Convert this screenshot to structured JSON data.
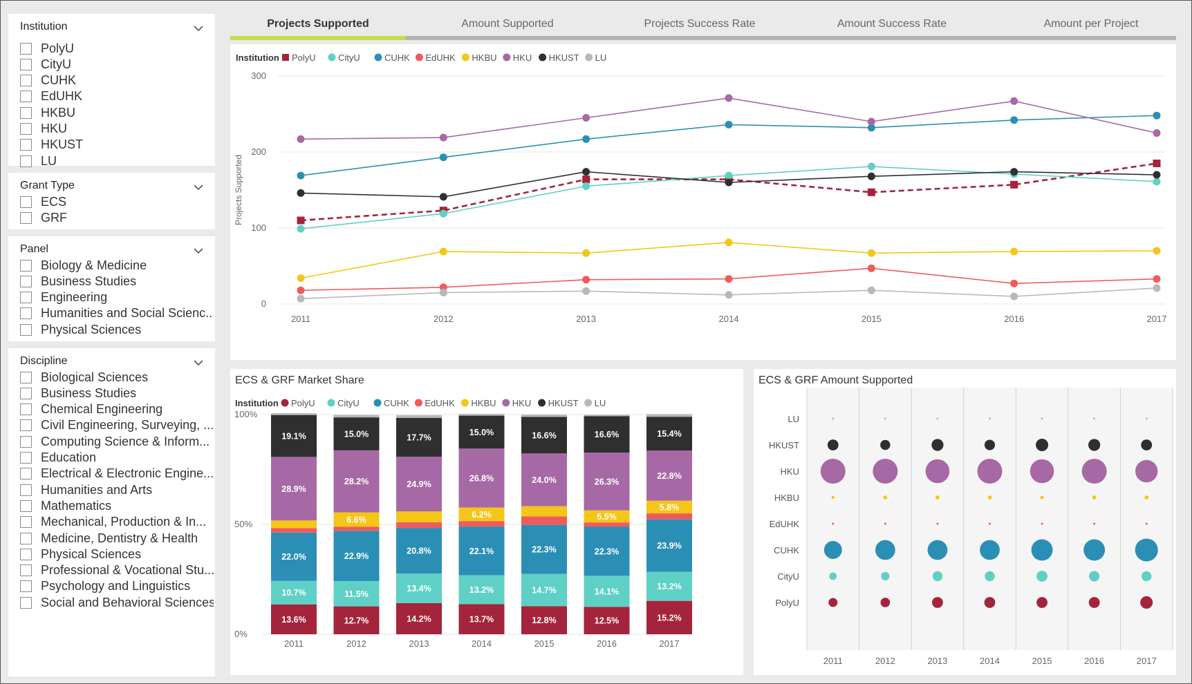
{
  "slicers": {
    "institution": {
      "title": "Institution",
      "items": [
        "PolyU",
        "CityU",
        "CUHK",
        "EdUHK",
        "HKBU",
        "HKU",
        "HKUST",
        "LU"
      ]
    },
    "grant_type": {
      "title": "Grant Type",
      "items": [
        "ECS",
        "GRF"
      ]
    },
    "panel": {
      "title": "Panel",
      "items": [
        "Biology & Medicine",
        "Business Studies",
        "Engineering",
        "Humanities and Social Scienc...",
        "Physical Sciences"
      ]
    },
    "discipline": {
      "title": "Discipline",
      "items": [
        "Biological Sciences",
        "Business Studies",
        "Chemical Engineering",
        "Civil Engineering, Surveying, ...",
        "Computing Science & Inform...",
        "Education",
        "Electrical & Electronic Engine...",
        "Humanities and Arts",
        "Mathematics",
        "Mechanical, Production & In...",
        "Medicine, Dentistry & Health",
        "Physical Sciences",
        "Professional & Vocational Stu...",
        "Psychology and Linguistics",
        "Social and Behavioral Sciences"
      ]
    }
  },
  "tabs": [
    "Projects Supported",
    "Amount Supported",
    "Projects Success Rate",
    "Amount Success Rate",
    "Amount per Project"
  ],
  "colors": {
    "PolyU": "#a4243b",
    "CityU": "#5fd0c6",
    "CUHK": "#2b8fb5",
    "EdUHK": "#f05a5a",
    "HKBU": "#f5c518",
    "HKU": "#a669a5",
    "HKUST": "#2f2f2f",
    "LU": "#b8b8b8",
    "tab_accent": "#c7dc4a"
  },
  "chart_data": [
    {
      "type": "line",
      "legend_title": "Institution",
      "ylabel": "Projects Supported",
      "x": [
        "2011",
        "2012",
        "2013",
        "2014",
        "2015",
        "2016",
        "2017"
      ],
      "ylim": [
        0,
        300
      ],
      "yticks": [
        "0",
        "100",
        "200",
        "300"
      ],
      "series": [
        {
          "name": "PolyU",
          "values": [
            110,
            123,
            164,
            164,
            147,
            157,
            185
          ],
          "style": "dashed",
          "marker": "square"
        },
        {
          "name": "CityU",
          "values": [
            99,
            119,
            155,
            169,
            181,
            171,
            161
          ]
        },
        {
          "name": "CUHK",
          "values": [
            169,
            193,
            217,
            236,
            232,
            242,
            248
          ]
        },
        {
          "name": "EdUHK",
          "values": [
            18,
            22,
            32,
            33,
            47,
            27,
            33
          ]
        },
        {
          "name": "HKBU",
          "values": [
            34,
            69,
            67,
            81,
            67,
            69,
            70
          ]
        },
        {
          "name": "HKU",
          "values": [
            217,
            219,
            245,
            271,
            240,
            267,
            225
          ]
        },
        {
          "name": "HKUST",
          "values": [
            146,
            141,
            174,
            160,
            168,
            174,
            170
          ]
        },
        {
          "name": "LU",
          "values": [
            7,
            15,
            17,
            12,
            18,
            10,
            21
          ]
        }
      ]
    },
    {
      "type": "bar",
      "stacked": true,
      "title": "ECS & GRF Market Share",
      "legend_title": "Institution",
      "categories": [
        "2011",
        "2012",
        "2013",
        "2014",
        "2015",
        "2016",
        "2017"
      ],
      "yticks": [
        "0%",
        "50%",
        "100%"
      ],
      "series": [
        {
          "name": "PolyU",
          "values": [
            13.6,
            12.7,
            14.2,
            13.7,
            12.8,
            12.5,
            15.2
          ],
          "labels": [
            "13.6%",
            "12.7%",
            "14.2%",
            "13.7%",
            "12.8%",
            "12.5%",
            "15.2%"
          ]
        },
        {
          "name": "CityU",
          "values": [
            10.7,
            11.5,
            13.4,
            13.2,
            14.7,
            14.1,
            13.2
          ],
          "labels": [
            "10.7%",
            "11.5%",
            "13.4%",
            "13.2%",
            "14.7%",
            "14.1%",
            "13.2%"
          ]
        },
        {
          "name": "CUHK",
          "values": [
            22.0,
            22.9,
            20.8,
            22.1,
            22.3,
            22.3,
            23.9
          ],
          "labels": [
            "22.0%",
            "22.9%",
            "20.8%",
            "22.1%",
            "22.3%",
            "22.3%",
            "23.9%"
          ]
        },
        {
          "name": "EdUHK",
          "values": [
            2.0,
            1.8,
            2.6,
            2.5,
            3.8,
            2.0,
            2.7
          ],
          "labels": [
            "",
            "",
            "",
            "",
            "",
            "",
            ""
          ]
        },
        {
          "name": "HKBU",
          "values": [
            3.5,
            6.6,
            4.9,
            6.2,
            4.7,
            5.5,
            5.8
          ],
          "labels": [
            "",
            "6.6%",
            "",
            "6.2%",
            "",
            "5.5%",
            "5.8%"
          ]
        },
        {
          "name": "HKU",
          "values": [
            28.9,
            28.2,
            24.9,
            26.8,
            24.0,
            26.3,
            22.8
          ],
          "labels": [
            "28.9%",
            "28.2%",
            "24.9%",
            "26.8%",
            "24.0%",
            "26.3%",
            "22.8%"
          ]
        },
        {
          "name": "HKUST",
          "values": [
            19.1,
            15.0,
            17.7,
            15.0,
            16.6,
            16.6,
            15.4
          ],
          "labels": [
            "19.1%",
            "15.0%",
            "17.7%",
            "15.0%",
            "16.6%",
            "16.6%",
            "15.4%"
          ]
        },
        {
          "name": "LU",
          "values": [
            0.8,
            1.1,
            1.2,
            0.8,
            1.1,
            0.6,
            1.2
          ],
          "labels": [
            "",
            "",
            "",
            "",
            "",
            "",
            ""
          ]
        }
      ]
    },
    {
      "type": "scatter",
      "subtype": "bubble",
      "title": "ECS & GRF Amount Supported",
      "x": [
        "2011",
        "2012",
        "2013",
        "2014",
        "2015",
        "2016",
        "2017"
      ],
      "y_categories": [
        "LU",
        "HKUST",
        "HKU",
        "HKBU",
        "EdUHK",
        "CUHK",
        "CityU",
        "PolyU"
      ],
      "relative_size": {
        "LU": [
          0.05,
          0.05,
          0.05,
          0.05,
          0.05,
          0.05,
          0.05
        ],
        "HKUST": [
          0.44,
          0.4,
          0.48,
          0.42,
          0.5,
          0.48,
          0.44
        ],
        "HKU": [
          1.0,
          1.0,
          0.96,
          1.0,
          0.96,
          1.0,
          0.9
        ],
        "HKBU": [
          0.12,
          0.16,
          0.16,
          0.16,
          0.14,
          0.16,
          0.16
        ],
        "EdUHK": [
          0.07,
          0.08,
          0.08,
          0.08,
          0.08,
          0.08,
          0.08
        ],
        "CUHK": [
          0.72,
          0.8,
          0.8,
          0.8,
          0.86,
          0.86,
          0.92
        ],
        "CityU": [
          0.3,
          0.34,
          0.4,
          0.4,
          0.44,
          0.42,
          0.4
        ],
        "PolyU": [
          0.36,
          0.38,
          0.44,
          0.44,
          0.44,
          0.44,
          0.5
        ]
      }
    }
  ]
}
